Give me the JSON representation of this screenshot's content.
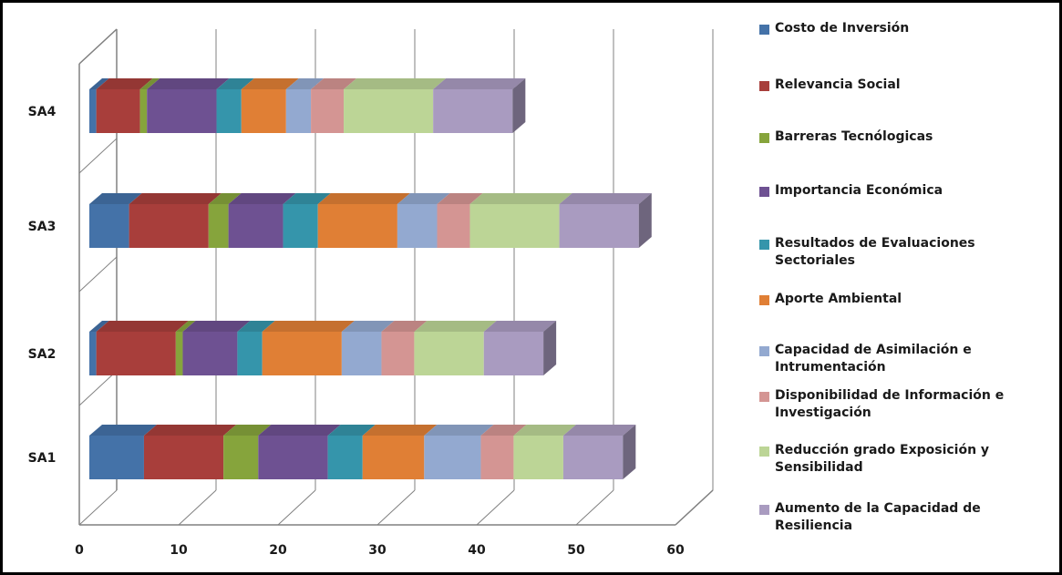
{
  "chart_data": {
    "type": "bar",
    "orientation": "horizontal",
    "stacked": true,
    "style": "3d",
    "title": "",
    "xlabel": "",
    "ylabel": "",
    "xlim": [
      0,
      60
    ],
    "x_ticks": [
      "0",
      "10",
      "20",
      "30",
      "40",
      "50",
      "60"
    ],
    "grid": true,
    "legend_position": "right",
    "categories": [
      "SA1",
      "SA2",
      "SA3",
      "SA4"
    ],
    "series": [
      {
        "name": "Costo de Inversión",
        "color": "#4472a8",
        "values": [
          5.5,
          0.7,
          4.0,
          0.7
        ]
      },
      {
        "name": "Relevancia Social",
        "color": "#a83e3b",
        "values": [
          8.0,
          8.0,
          8.0,
          4.4
        ]
      },
      {
        "name": "Barreras Tecnólogicas",
        "color": "#86a43c",
        "values": [
          3.5,
          0.7,
          2.0,
          0.7
        ]
      },
      {
        "name": "Importancia Económica",
        "color": "#6e5192",
        "values": [
          7.0,
          5.5,
          5.5,
          7.0
        ]
      },
      {
        "name": "Resultados de Evaluaciones Sectoriales",
        "color": "#3595ab",
        "values": [
          3.5,
          2.5,
          3.5,
          2.5
        ]
      },
      {
        "name": "Aporte Ambiental",
        "color": "#e07f35",
        "values": [
          6.2,
          8.0,
          8.0,
          4.5
        ]
      },
      {
        "name": "Capacidad de Asimilación e Intrumentación",
        "color": "#93a9d0",
        "values": [
          5.7,
          4.0,
          4.0,
          2.5
        ]
      },
      {
        "name": "Disponibilidad de Información e Investigación",
        "color": "#d49593",
        "values": [
          3.3,
          3.3,
          3.3,
          3.3
        ]
      },
      {
        "name": "Reducción grado Exposición y Sensibilidad",
        "color": "#bcd596",
        "values": [
          5.0,
          7.0,
          9.0,
          9.0
        ]
      },
      {
        "name": "Aumento de la Capacidad de Resiliencia",
        "color": "#a99bc0",
        "values": [
          6.0,
          6.0,
          8.0,
          8.0
        ]
      }
    ]
  }
}
